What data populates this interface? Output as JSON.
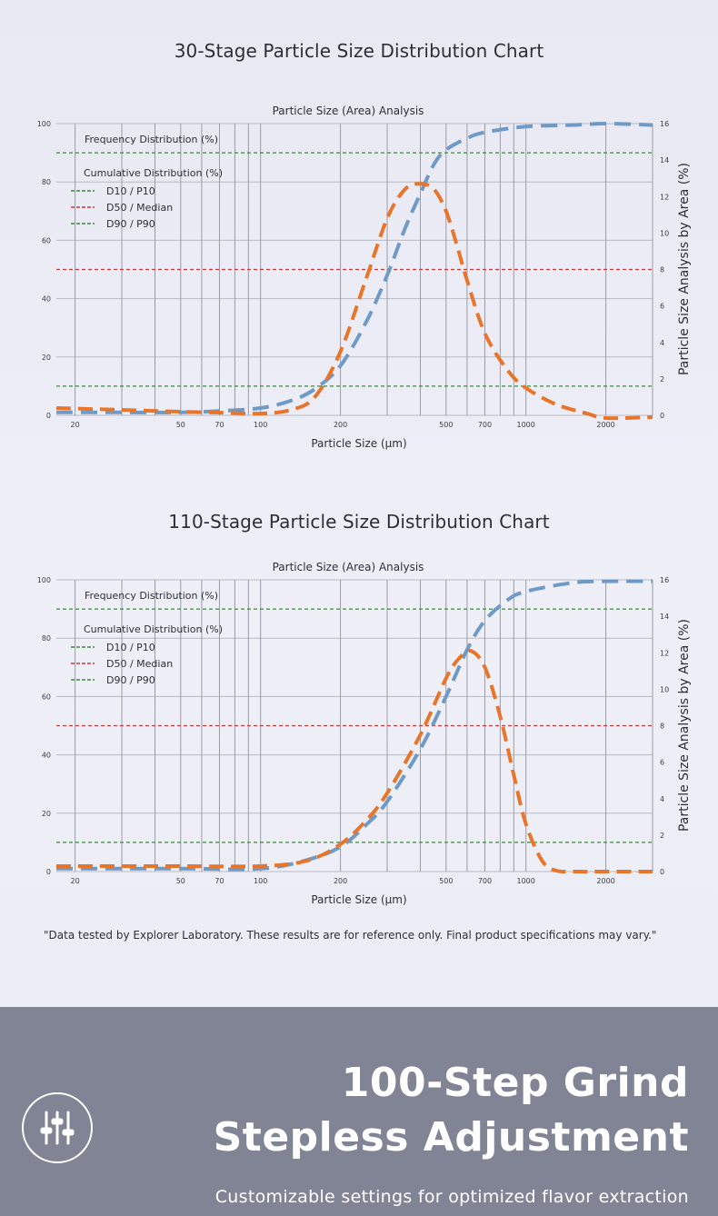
{
  "charts": {
    "c1": {
      "heading": "30-Stage Particle Size Distribution Chart"
    },
    "c2": {
      "heading": "110-Stage Particle Size Distribution Chart"
    }
  },
  "footnote": "\"Data tested by Explorer Laboratory. These results are for reference only. Final product specifications may vary.\"",
  "banner": {
    "line1": "100-Step Grind",
    "line2": "Stepless Adjustment",
    "subtitle": "Customizable settings for optimized flavor extraction",
    "icon": "sliders-icon"
  },
  "colors": {
    "cumulative": "#6f9ac6",
    "frequency": "#e8752a",
    "d10_d90": "#3d8a3d",
    "d50": "#c53a3a",
    "banner_bg": "#808494"
  },
  "chart_data": [
    {
      "type": "line",
      "title": "Particle Size (Area) Analysis",
      "xlabel": "Particle Size (µm)",
      "ylabel_right": "Particle Size Analysis by Area (%)",
      "x_scale": "log",
      "x_ticks": [
        20,
        50,
        70,
        100,
        200,
        500,
        700,
        1000,
        2000
      ],
      "y_left_ticks": [
        0,
        20,
        40,
        60,
        80,
        100
      ],
      "y_right_ticks": [
        0,
        2,
        4,
        6,
        8,
        10,
        12,
        14,
        16
      ],
      "ylim_left": [
        0,
        100
      ],
      "ylim_right": [
        0,
        16
      ],
      "legend": [
        "Frequency Distribution (%)",
        "Cumulative Distribution (%)",
        "D10 / P10",
        "D50 / Median",
        "D90 / P90"
      ],
      "reference_lines": [
        {
          "name": "D10 / P10",
          "y": 10
        },
        {
          "name": "D50 / Median",
          "y": 50
        },
        {
          "name": "D90 / P90",
          "y": 90
        }
      ],
      "series": [
        {
          "name": "Cumulative Distribution (%)",
          "axis": "left",
          "x": [
            17,
            30,
            50,
            70,
            100,
            130,
            160,
            200,
            250,
            300,
            350,
            400,
            450,
            500,
            600,
            700,
            1000,
            1500,
            2000,
            3000
          ],
          "y": [
            1,
            1,
            1,
            1.5,
            2.5,
            5,
            9,
            17,
            32,
            48,
            64,
            76,
            86,
            91,
            95,
            97,
            99,
            99.5,
            100,
            99.5
          ]
        },
        {
          "name": "Frequency Distribution (%)",
          "axis": "right",
          "x": [
            17,
            30,
            50,
            70,
            100,
            130,
            160,
            200,
            250,
            300,
            350,
            400,
            450,
            500,
            550,
            600,
            700,
            850,
            1000,
            1300,
            1700,
            2000,
            3000
          ],
          "y": [
            0.4,
            0.3,
            0.2,
            0.15,
            0.1,
            0.3,
            1,
            3.5,
            7.5,
            10.8,
            12.4,
            12.7,
            12.4,
            11.2,
            9.3,
            7.4,
            4.5,
            2.5,
            1.5,
            0.6,
            0.1,
            -0.15,
            -0.1
          ]
        }
      ]
    },
    {
      "type": "line",
      "title": "Particle Size (Area) Analysis",
      "xlabel": "Particle Size (µm)",
      "ylabel_right": "Particle Size Analysis by Area (%)",
      "x_scale": "log",
      "x_ticks": [
        20,
        50,
        70,
        100,
        200,
        500,
        700,
        1000,
        2000
      ],
      "y_left_ticks": [
        0,
        20,
        40,
        60,
        80,
        100
      ],
      "y_right_ticks": [
        0,
        2,
        4,
        6,
        8,
        10,
        12,
        14,
        16
      ],
      "ylim_left": [
        0,
        100
      ],
      "ylim_right": [
        0,
        16
      ],
      "legend": [
        "Frequency Distribution (%)",
        "Cumulative Distribution (%)",
        "D10 / P10",
        "D50 / Median",
        "D90 / P90"
      ],
      "reference_lines": [
        {
          "name": "D10 / P10",
          "y": 10
        },
        {
          "name": "D50 / Median",
          "y": 50
        },
        {
          "name": "D90 / P90",
          "y": 90
        }
      ],
      "series": [
        {
          "name": "Cumulative Distribution (%)",
          "axis": "left",
          "x": [
            17,
            50,
            100,
            150,
            200,
            250,
            300,
            400,
            500,
            600,
            700,
            850,
            1000,
            1500,
            2000,
            3000
          ],
          "y": [
            1,
            1,
            1,
            4,
            8.5,
            16,
            24,
            42,
            60,
            76,
            86,
            93,
            96,
            99,
            99.5,
            99.5
          ]
        },
        {
          "name": "Frequency Distribution (%)",
          "axis": "right",
          "x": [
            17,
            50,
            100,
            150,
            200,
            250,
            300,
            400,
            500,
            560,
            620,
            700,
            800,
            900,
            1000,
            1150,
            1300,
            1600,
            2000,
            3000
          ],
          "y": [
            0.3,
            0.3,
            0.3,
            0.6,
            1.5,
            2.8,
            4.3,
            7.5,
            10.6,
            11.7,
            12.1,
            11.2,
            8.5,
            5.3,
            2.6,
            0.6,
            0.05,
            0,
            0,
            0
          ]
        }
      ]
    }
  ]
}
